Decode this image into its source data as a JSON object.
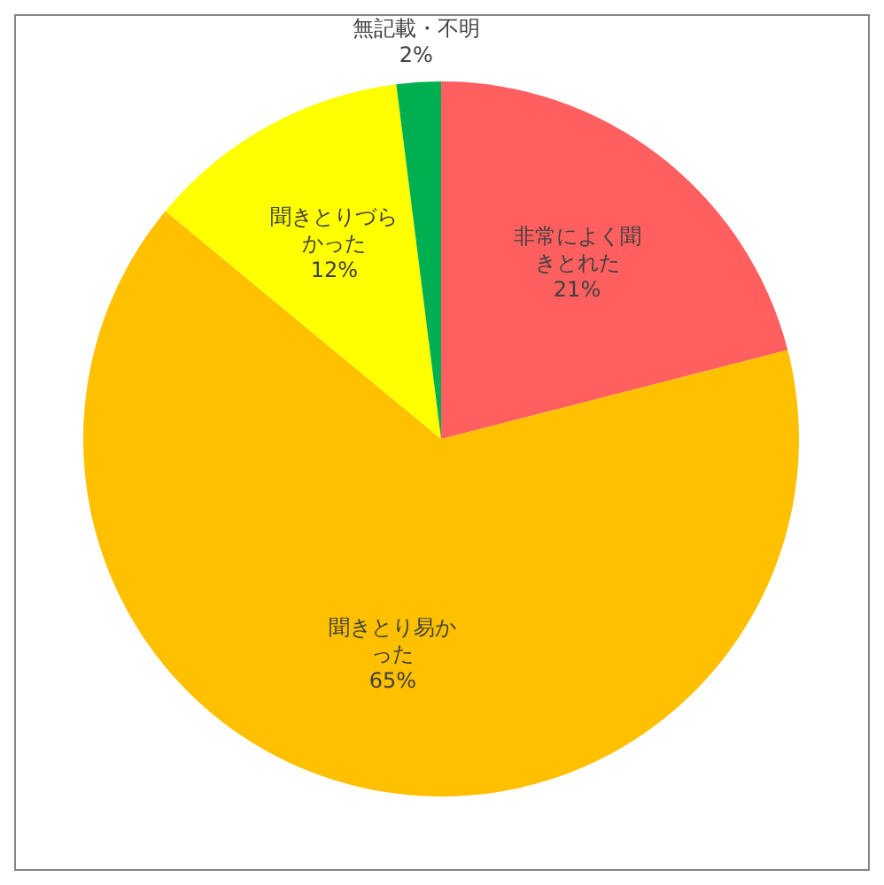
{
  "chart_data": {
    "type": "pie",
    "categories": [
      "非常によく聞きとれた",
      "聞きとり易かった",
      "聞きとりづらかった",
      "無記載・不明"
    ],
    "values": [
      21,
      65,
      12,
      2
    ],
    "colors": [
      "#ff5f5f",
      "#ffc000",
      "#ffff00",
      "#00b050"
    ],
    "value_labels": [
      "21%",
      "65%",
      "12%",
      "2%"
    ]
  }
}
